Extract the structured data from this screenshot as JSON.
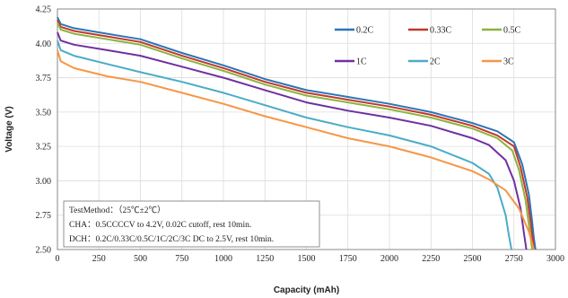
{
  "chart_data": {
    "type": "line",
    "title": "",
    "xlabel": "Capacity (mAh)",
    "ylabel": "Voltage (V)",
    "xlim": [
      0,
      3000
    ],
    "ylim": [
      2.5,
      4.25
    ],
    "xticks": [
      "0",
      "250",
      "500",
      "750",
      "1000",
      "1250",
      "1500",
      "1750",
      "2000",
      "2250",
      "2500",
      "2750",
      "3000"
    ],
    "yticks": [
      "2.50",
      "2.75",
      "3.00",
      "3.25",
      "3.50",
      "3.75",
      "4.00",
      "4.25"
    ],
    "grid": true,
    "legend_position": "top-right",
    "series": [
      {
        "name": "0.2C",
        "color": "#2e75b6",
        "x": [
          0,
          20,
          100,
          300,
          500,
          750,
          1000,
          1250,
          1500,
          1750,
          2000,
          2250,
          2500,
          2650,
          2750,
          2800,
          2840,
          2860,
          2870,
          2880
        ],
        "y": [
          4.19,
          4.14,
          4.11,
          4.07,
          4.03,
          3.93,
          3.84,
          3.74,
          3.66,
          3.61,
          3.56,
          3.5,
          3.42,
          3.36,
          3.28,
          3.12,
          2.9,
          2.7,
          2.58,
          2.5
        ]
      },
      {
        "name": "0.33C",
        "color": "#c0392b",
        "x": [
          0,
          20,
          100,
          300,
          500,
          750,
          1000,
          1250,
          1500,
          1750,
          2000,
          2250,
          2500,
          2650,
          2750,
          2790,
          2830,
          2850,
          2862,
          2870
        ],
        "y": [
          4.17,
          4.12,
          4.09,
          4.05,
          4.01,
          3.91,
          3.82,
          3.72,
          3.64,
          3.59,
          3.54,
          3.48,
          3.4,
          3.33,
          3.25,
          3.1,
          2.88,
          2.7,
          2.58,
          2.5
        ]
      },
      {
        "name": "0.5C",
        "color": "#8db33f",
        "x": [
          0,
          20,
          100,
          300,
          500,
          750,
          1000,
          1250,
          1500,
          1750,
          2000,
          2250,
          2500,
          2650,
          2740,
          2780,
          2820,
          2840,
          2852,
          2860
        ],
        "y": [
          4.15,
          4.1,
          4.07,
          4.03,
          3.99,
          3.89,
          3.8,
          3.7,
          3.62,
          3.57,
          3.52,
          3.46,
          3.38,
          3.31,
          3.22,
          3.08,
          2.86,
          2.68,
          2.57,
          2.5
        ]
      },
      {
        "name": "1C",
        "color": "#7030a0",
        "x": [
          0,
          20,
          100,
          300,
          500,
          750,
          1000,
          1250,
          1500,
          1750,
          2000,
          2250,
          2500,
          2600,
          2700,
          2750,
          2790,
          2810,
          2825
        ],
        "y": [
          4.08,
          4.02,
          3.99,
          3.95,
          3.91,
          3.83,
          3.75,
          3.66,
          3.57,
          3.51,
          3.46,
          3.4,
          3.31,
          3.26,
          3.15,
          3.0,
          2.8,
          2.62,
          2.5
        ]
      },
      {
        "name": "2C",
        "color": "#4bacc6",
        "x": [
          0,
          20,
          100,
          300,
          500,
          750,
          1000,
          1250,
          1500,
          1750,
          2000,
          2250,
          2500,
          2600,
          2650,
          2700,
          2720,
          2735
        ],
        "y": [
          4.02,
          3.95,
          3.91,
          3.85,
          3.79,
          3.72,
          3.64,
          3.55,
          3.46,
          3.39,
          3.33,
          3.25,
          3.13,
          3.05,
          2.95,
          2.75,
          2.6,
          2.5
        ]
      },
      {
        "name": "3C",
        "color": "#f79646",
        "x": [
          0,
          20,
          100,
          300,
          500,
          750,
          1000,
          1250,
          1500,
          1750,
          2000,
          2250,
          2500,
          2600,
          2700,
          2780,
          2840,
          2870
        ],
        "y": [
          3.95,
          3.87,
          3.82,
          3.76,
          3.72,
          3.64,
          3.56,
          3.47,
          3.39,
          3.31,
          3.25,
          3.17,
          3.07,
          3.01,
          2.93,
          2.8,
          2.63,
          2.5
        ]
      }
    ],
    "annotation": [
      "TestMethod：（25℃±2℃）",
      "CHA：0.5CCCCV to 4.2V, 0.02C cutoff, rest 10min.",
      "DCH：0.2C/0.33C/0.5C/1C/2C/3C DC to 2.5V, rest 10min."
    ]
  }
}
